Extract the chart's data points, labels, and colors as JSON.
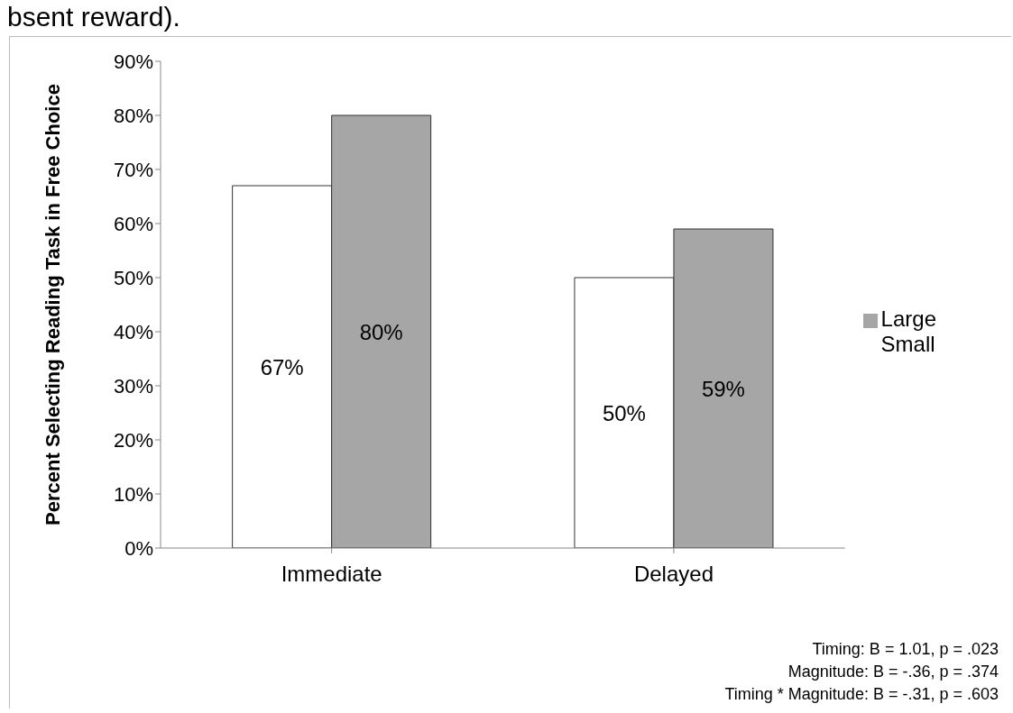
{
  "chart_data": {
    "type": "bar",
    "ylabel": "Percent Selecting Reading Task in Free Choice",
    "categories": [
      "Immediate",
      "Delayed"
    ],
    "series": [
      {
        "name": "Small",
        "color": "#ffffff",
        "values": [
          67,
          50
        ],
        "value_labels": [
          "67%",
          "50%"
        ]
      },
      {
        "name": "Large",
        "color": "#a6a6a6",
        "values": [
          80,
          59
        ],
        "value_labels": [
          "80%",
          "59%"
        ]
      }
    ],
    "ylim": [
      0,
      90
    ],
    "yticks": [
      {
        "value": 0,
        "label": "0%"
      },
      {
        "value": 10,
        "label": "10%"
      },
      {
        "value": 20,
        "label": "20%"
      },
      {
        "value": 30,
        "label": "30%"
      },
      {
        "value": 40,
        "label": "40%"
      },
      {
        "value": 50,
        "label": "50%"
      },
      {
        "value": 60,
        "label": "60%"
      },
      {
        "value": 70,
        "label": "70%"
      },
      {
        "value": 80,
        "label": "80%"
      },
      {
        "value": 90,
        "label": "90%"
      }
    ],
    "grid": false,
    "legend": "right",
    "annotations": [
      "bsent reward).",
      "Timing: B = 1.01, p = .023",
      "Magnitude: B = -.36, p = .374",
      "Timing * Magnitude: B = -.31, p = .603"
    ]
  }
}
